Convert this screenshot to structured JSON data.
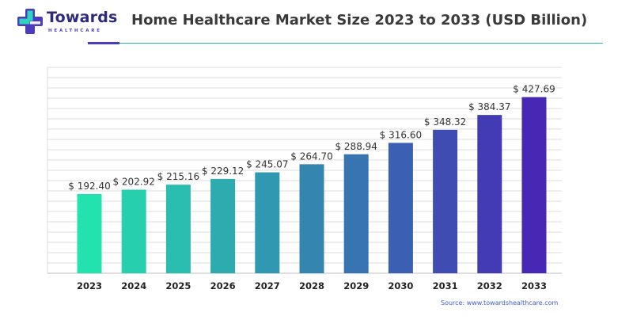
{
  "logo": {
    "name": "Towards",
    "subtitle": "HEALTHCARE"
  },
  "header": {
    "title": "Home Healthcare Market Size 2023 to 2033 (USD Billion)"
  },
  "source_note": "Source: www.towardshealthcare.com",
  "colors": {
    "bar_start": "#22e3ad",
    "bar_end": "#4628b5",
    "grid": "#dcdcdc",
    "title": "#3a3a3a",
    "accent": "#4b3bbd",
    "teal_rule": "#23b9a4",
    "source_link": "#3c5fd0"
  },
  "chart_data": {
    "type": "bar",
    "title": "Home Healthcare Market Size 2023 to 2033 (USD Billion)",
    "xlabel": "",
    "ylabel": "",
    "categories": [
      "2023",
      "2024",
      "2025",
      "2026",
      "2027",
      "2028",
      "2029",
      "2030",
      "2031",
      "2032",
      "2033"
    ],
    "values": [
      192.4,
      202.92,
      215.16,
      229.12,
      245.07,
      264.7,
      288.94,
      316.6,
      348.32,
      384.37,
      427.69
    ],
    "value_labels": [
      "$ 192.40",
      "$ 202.92",
      "$ 215.16",
      "$ 229.12",
      "$ 245.07",
      "$ 264.70",
      "$ 288.94",
      "$ 316.60",
      "$ 348.32",
      "$ 384.37",
      "$ 427.69"
    ],
    "ylim": [
      0,
      500
    ],
    "grid": true,
    "legend": "none",
    "y_tick_labels_shown": false
  }
}
